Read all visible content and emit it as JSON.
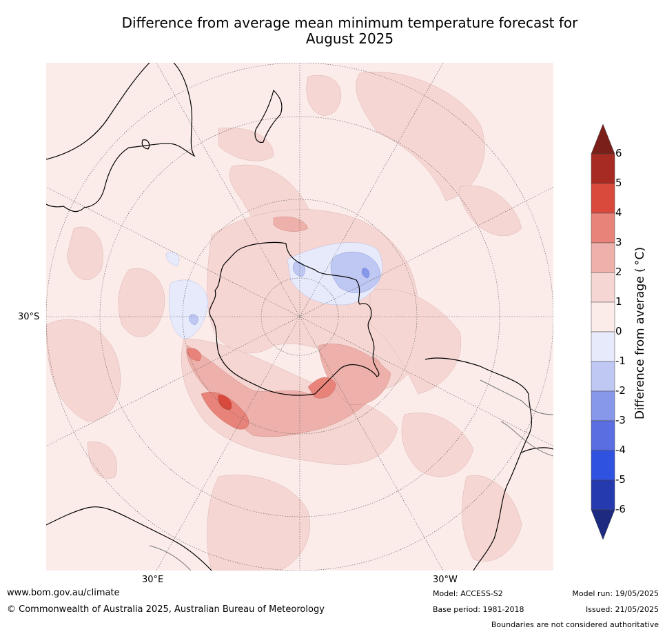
{
  "title_line1": "Difference from average mean minimum temperature forecast for",
  "title_line2": "August 2025",
  "map": {
    "lat_label": "30°S",
    "lon_label_east": "30°E",
    "lon_label_west": "30°W"
  },
  "colorbar": {
    "label": "Difference from average ( °C)",
    "ticks": [
      "6",
      "5",
      "4",
      "3",
      "2",
      "1",
      "0",
      "-1",
      "-2",
      "-3",
      "-4",
      "-5",
      "-6"
    ],
    "colors_top_to_bottom": [
      "#7a1f19",
      "#a82b23",
      "#d94a3c",
      "#e8837a",
      "#eeb0aa",
      "#f5d6d3",
      "#fbecea",
      "#e6eafb",
      "#bfc7f3",
      "#8797ea",
      "#5a6de1",
      "#3052e0",
      "#263ab0",
      "#1c2a80"
    ]
  },
  "footer": {
    "website": "www.bom.gov.au/climate",
    "copyright": "© Commonwealth of Australia 2025, Australian Bureau of Meteorology",
    "model": "Model: ACCESS-S2",
    "base_period": "Base period: 1981-2018",
    "model_run": "Model run: 19/05/2025",
    "issued": "Issued: 21/05/2025",
    "disclaimer": "Boundaries are not considered authoritative"
  }
}
